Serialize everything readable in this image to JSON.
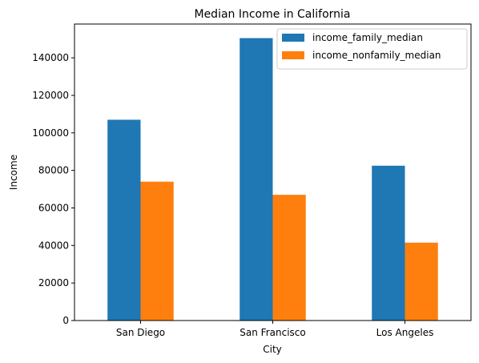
{
  "chart_data": {
    "type": "bar",
    "title": "Median Income in California",
    "xlabel": "City",
    "ylabel": "Income",
    "categories": [
      "San Diego",
      "San Francisco",
      "Los Angeles"
    ],
    "series": [
      {
        "name": "income_family_median",
        "values": [
          107000,
          150500,
          82500
        ],
        "color": "#1f77b4"
      },
      {
        "name": "income_nonfamily_median",
        "values": [
          74000,
          67000,
          41500
        ],
        "color": "#ff7f0e"
      }
    ],
    "ylim": [
      0,
      158000
    ],
    "yticks": [
      0,
      20000,
      40000,
      60000,
      80000,
      100000,
      120000,
      140000
    ],
    "grid": false,
    "legend_position": "top-right"
  }
}
